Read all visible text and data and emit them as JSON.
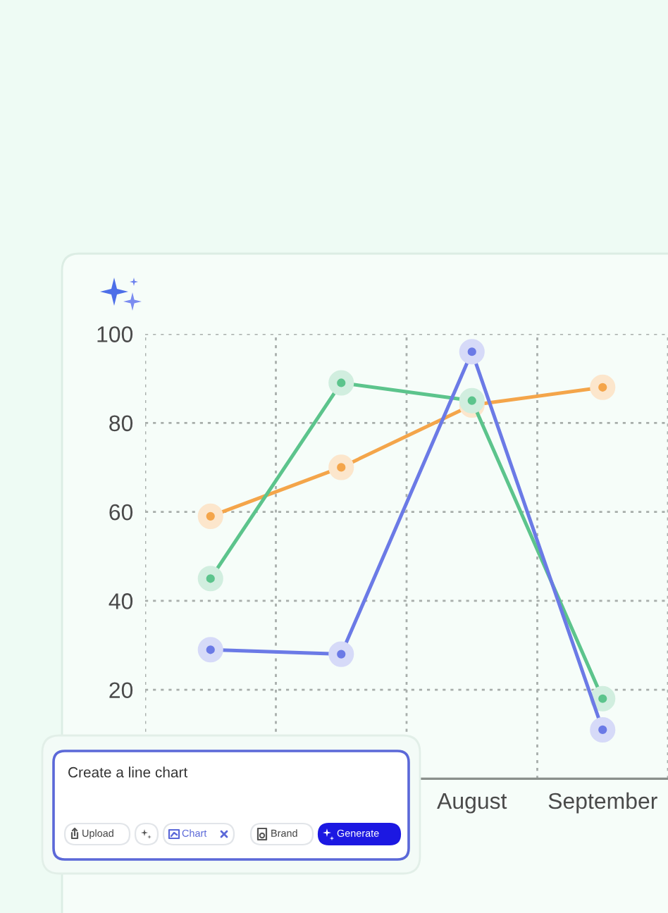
{
  "chart_data": {
    "type": "line",
    "categories": [
      null,
      null,
      "August",
      "September"
    ],
    "series": [
      {
        "color": "#f4a54a",
        "values": [
          59,
          70,
          84,
          88
        ]
      },
      {
        "color": "#5cc48c",
        "values": [
          45,
          89,
          85,
          18
        ]
      },
      {
        "color": "#6b7ae6",
        "values": [
          29,
          28,
          96,
          11
        ]
      }
    ],
    "ylim": [
      0,
      100
    ],
    "yticks": [
      20,
      40,
      60,
      80,
      100
    ],
    "grid": true,
    "marker": "circle",
    "line_style": "solid",
    "annotations": [
      "Create a line chart",
      "Upload",
      "Chart",
      "Brand",
      "Generate"
    ]
  }
}
